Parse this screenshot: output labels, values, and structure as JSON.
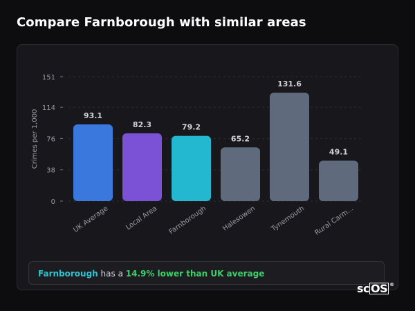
{
  "page": {
    "title": "Compare Farnborough with similar areas"
  },
  "summary": {
    "area": "Farnborough",
    "middle": " has a ",
    "stat": "14.9% lower than UK average"
  },
  "brand": {
    "prefix": "sc",
    "boxed": "OS",
    "reg": "®"
  },
  "colors": {
    "uk_average": "#3a78de",
    "local_area": "#7b52d6",
    "highlight": "#23b8d0",
    "other": "#5f6b7c",
    "summary_area": "#2fc2cf",
    "summary_stat": "#3ccf6a"
  },
  "chart_data": {
    "type": "bar",
    "title": "",
    "xlabel": "",
    "ylabel": "Crimes per 1,000",
    "categories": [
      "UK Average",
      "Local Area",
      "Farnborough",
      "Halesowen",
      "Tynemouth",
      "Rural Carm..."
    ],
    "values": [
      93.1,
      82.3,
      79.2,
      65.2,
      131.6,
      49.1
    ],
    "value_labels": [
      "93.1",
      "82.3",
      "79.2",
      "65.2",
      "131.6",
      "49.1"
    ],
    "bar_colors": [
      "#3a78de",
      "#7b52d6",
      "#23b8d0",
      "#5f6b7c",
      "#5f6b7c",
      "#5f6b7c"
    ],
    "yticks": [
      0,
      38,
      76,
      114,
      151
    ],
    "ylim": [
      0,
      151
    ],
    "grid": "dashed horizontal",
    "legend": "none"
  }
}
